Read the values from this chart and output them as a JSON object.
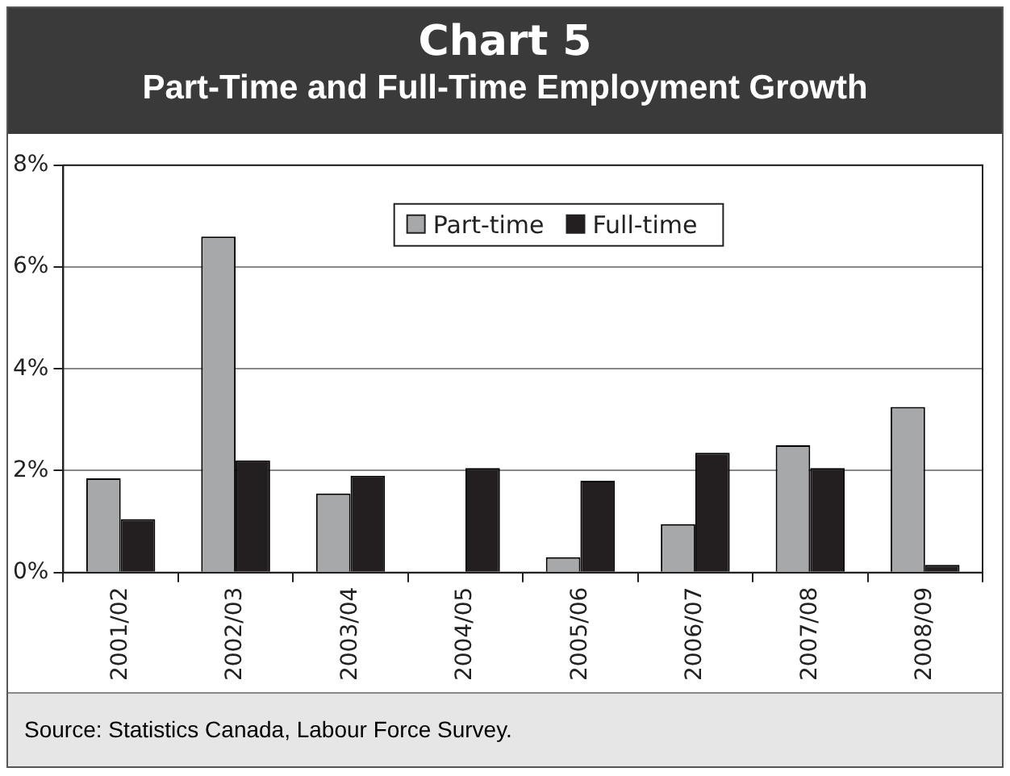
{
  "chart_data": {
    "type": "bar",
    "title": "Chart 5",
    "subtitle": "Part-Time and Full-Time Employment Growth",
    "categories": [
      "2001/02",
      "2002/03",
      "2003/04",
      "2004/05",
      "2005/06",
      "2006/07",
      "2007/08",
      "2008/09"
    ],
    "series": [
      {
        "name": "Part-time",
        "color": "#a7a8aa",
        "values": [
          1.85,
          6.6,
          1.55,
          0,
          0.3,
          0.95,
          2.5,
          3.25
        ]
      },
      {
        "name": "Full-time",
        "color": "#231f20",
        "values": [
          1.05,
          2.2,
          1.9,
          2.05,
          1.8,
          2.35,
          2.05,
          0.15
        ]
      }
    ],
    "ylim": [
      0,
      8
    ],
    "yticks": [
      {
        "value": 0,
        "label": "0%"
      },
      {
        "value": 2,
        "label": "2%"
      },
      {
        "value": 4,
        "label": "4%"
      },
      {
        "value": 6,
        "label": "6%"
      },
      {
        "value": 8,
        "label": "8%"
      }
    ],
    "grid": "y",
    "legend": "top",
    "annotations": [
      "Source: Statistics Canada, Labour Force Survey."
    ]
  }
}
